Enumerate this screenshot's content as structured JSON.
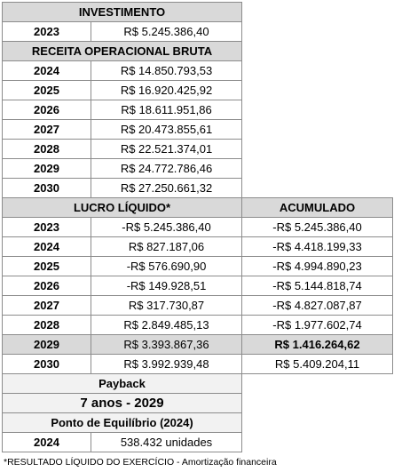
{
  "investimento": {
    "header": "INVESTIMENTO",
    "year": "2023",
    "value": "R$ 5.245.386,40"
  },
  "receita": {
    "header": "RECEITA OPERACIONAL BRUTA",
    "rows": [
      {
        "year": "2024",
        "value": "R$ 14.850.793,53"
      },
      {
        "year": "2025",
        "value": "R$ 16.920.425,92"
      },
      {
        "year": "2026",
        "value": "R$ 18.611.951,86"
      },
      {
        "year": "2027",
        "value": "R$ 20.473.855,61"
      },
      {
        "year": "2028",
        "value": "R$ 22.521.374,01"
      },
      {
        "year": "2029",
        "value": "R$ 24.772.786,46"
      },
      {
        "year": "2030",
        "value": "R$ 27.250.661,32"
      }
    ]
  },
  "lucro": {
    "header": "LUCRO LÍQUIDO*",
    "acc_header": "ACUMULADO",
    "rows": [
      {
        "year": "2023",
        "value": "-R$ 5.245.386,40",
        "acc": "-R$ 5.245.386,40"
      },
      {
        "year": "2024",
        "value": "R$ 827.187,06",
        "acc": "-R$ 4.418.199,33"
      },
      {
        "year": "2025",
        "value": "-R$ 576.690,90",
        "acc": "-R$ 4.994.890,23"
      },
      {
        "year": "2026",
        "value": "-R$ 149.928,51",
        "acc": "-R$ 5.144.818,74"
      },
      {
        "year": "2027",
        "value": "R$ 317.730,87",
        "acc": "-R$ 4.827.087,87"
      },
      {
        "year": "2028",
        "value": "R$ 2.849.485,13",
        "acc": "-R$ 1.977.602,74"
      },
      {
        "year": "2029",
        "value": "R$ 3.393.867,36",
        "acc": "R$ 1.416.264,62"
      },
      {
        "year": "2030",
        "value": "R$ 3.992.939,48",
        "acc": "R$ 5.409.204,11"
      }
    ]
  },
  "payback": {
    "header": "Payback",
    "value": "7 anos - 2029"
  },
  "equilibrio": {
    "header": "Ponto de Equilíbrio (2024)",
    "year": "2024",
    "value": "538.432 unidades"
  },
  "footnote": "*RESULTADO LÍQUIDO DO EXERCÍCIO - Amortização financeira"
}
